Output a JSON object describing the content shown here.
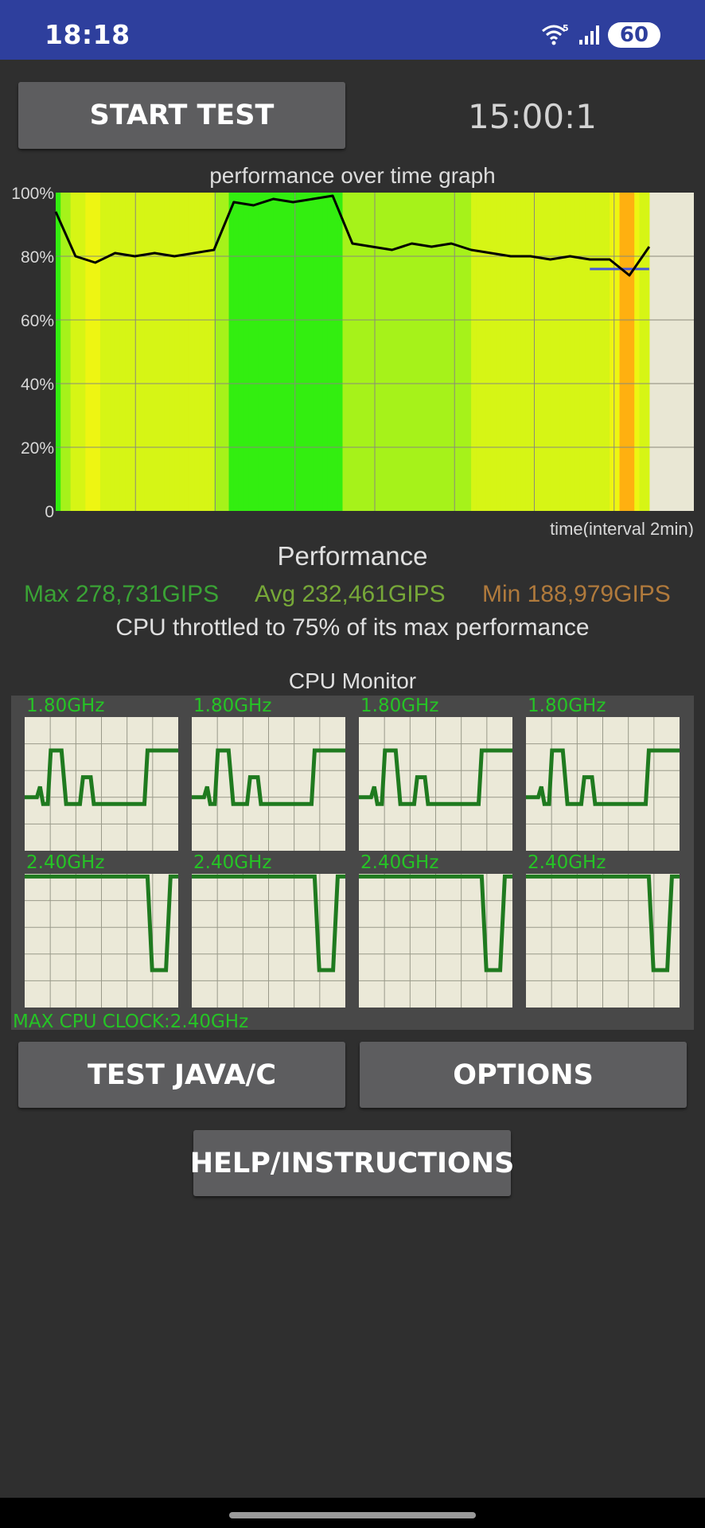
{
  "status_bar": {
    "time": "18:18",
    "icons": [
      "wifi-5-icon",
      "signal-icon"
    ],
    "battery": "60"
  },
  "toolbar": {
    "start_test_label": "START TEST",
    "timer": "15:00:1"
  },
  "performance_graph": {
    "title": "performance over time graph",
    "x_axis_label": "time(interval 2min)",
    "y_tick_labels": [
      "100%",
      "80%",
      "60%",
      "40%",
      "20%",
      "0"
    ]
  },
  "chart_data": {
    "type": "line",
    "title": "performance over time graph",
    "xlabel": "time(interval 2min)",
    "ylabel": "",
    "ylim": [
      0,
      100
    ],
    "yticks": [
      "0",
      "20%",
      "40%",
      "60%",
      "80%",
      "100%"
    ],
    "grid": true,
    "x": [
      0,
      0.5,
      1,
      1.5,
      2,
      2.5,
      3,
      3.5,
      4,
      4.5,
      5,
      5.5,
      6,
      6.5,
      7,
      7.5,
      8,
      8.5,
      9,
      9.5,
      10,
      10.5,
      11,
      11.5,
      12,
      12.5,
      13,
      13.5,
      14,
      14.5,
      15
    ],
    "series": [
      {
        "values": [
          94,
          80,
          78,
          81,
          80,
          81,
          80,
          81,
          82,
          97,
          96,
          98,
          97,
          98,
          99,
          84,
          83,
          82,
          84,
          83,
          84,
          82,
          81,
          80,
          80,
          79,
          80,
          79,
          79,
          74,
          83
        ],
        "color": "#000000"
      }
    ],
    "reference_line": {
      "y": 76,
      "color": "#4455dd"
    }
  },
  "performance": {
    "heading": "Performance",
    "max": "Max 278,731GIPS",
    "avg": "Avg 232,461GIPS",
    "min": "Min 188,979GIPS",
    "throttle_text": "CPU throttled to 75% of its max performance",
    "colors": {
      "max": "#3aa335",
      "avg": "#77a838",
      "min": "#b07a3c"
    }
  },
  "cpu_monitor": {
    "title": "CPU Monitor",
    "cores": [
      {
        "freq": "1.80GHz"
      },
      {
        "freq": "1.80GHz"
      },
      {
        "freq": "1.80GHz"
      },
      {
        "freq": "1.80GHz"
      },
      {
        "freq": "2.40GHz"
      },
      {
        "freq": "2.40GHz"
      },
      {
        "freq": "2.40GHz"
      },
      {
        "freq": "2.40GHz"
      }
    ],
    "max_clock": "MAX CPU CLOCK:2.40GHz"
  },
  "buttons": {
    "test_java_c": "TEST JAVA/C",
    "options": "OPTIONS",
    "help": "HELP/INSTRUCTIONS"
  }
}
